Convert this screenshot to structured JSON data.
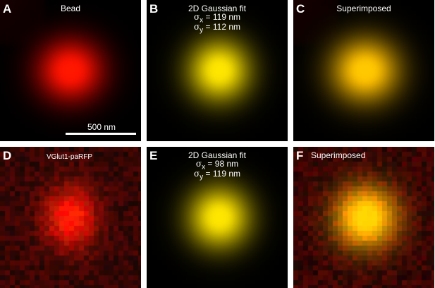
{
  "panels": [
    {
      "letter": "A",
      "title": "Bead",
      "type": "bead",
      "color": "red"
    },
    {
      "letter": "B",
      "title": "2D Gaussian fit",
      "sigma_x": "119 nm",
      "sigma_y": "112 nm",
      "type": "fit",
      "color": "yellow"
    },
    {
      "letter": "C",
      "title": "Superimposed",
      "type": "super",
      "color": "orange"
    },
    {
      "letter": "D",
      "title": "VGlut1-paRFP",
      "type": "noisy",
      "color": "red"
    },
    {
      "letter": "E",
      "title": "2D Gaussian fit",
      "sigma_x": "98 nm",
      "sigma_y": "119 nm",
      "type": "fit",
      "color": "yellow"
    },
    {
      "letter": "F",
      "title": "Superimposed",
      "type": "noisysuper",
      "color": "orange"
    }
  ],
  "scale_bar": {
    "label": "500 nm"
  },
  "sigma_symbol": "σ",
  "sigma_x_sub": "x",
  "sigma_y_sub": "y",
  "equals": "="
}
